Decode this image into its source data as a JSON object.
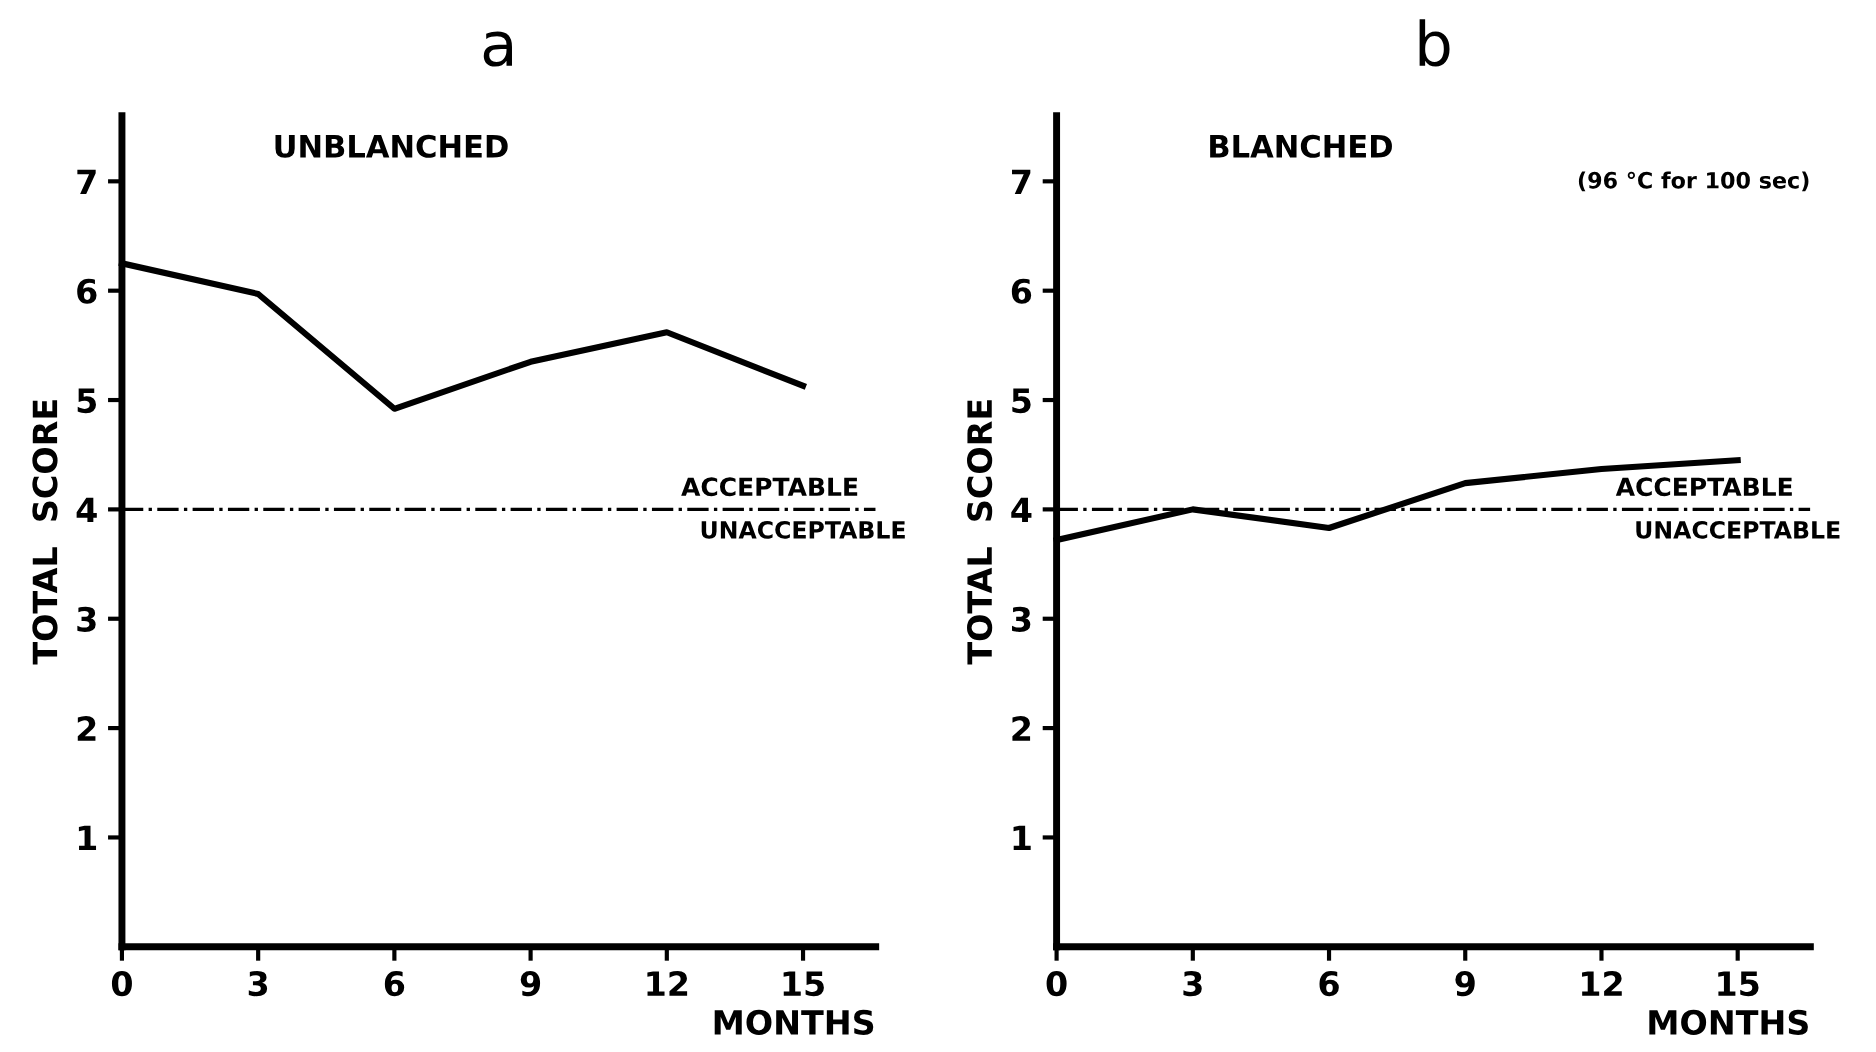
{
  "chart_data": [
    {
      "type": "line",
      "title": "a",
      "subtitle": "UNBLANCHED",
      "xlabel": "MONTHS",
      "ylabel": "TOTAL  SCORE",
      "x": [
        0,
        3,
        6,
        9,
        12,
        15
      ],
      "series": [
        {
          "color": "#000000",
          "values": [
            6.25,
            5.97,
            4.92,
            5.35,
            5.62,
            5.13
          ]
        }
      ],
      "xlim": [
        0,
        16.6
      ],
      "ylim": [
        0,
        7.6
      ],
      "xticks": [
        0,
        3,
        6,
        9,
        12,
        15
      ],
      "yticks": [
        1,
        2,
        3,
        4,
        5,
        6,
        7
      ],
      "ref_lines": [
        {
          "axis": "y",
          "value": 4,
          "label": "ACCEPTABLE",
          "color": "#000000",
          "line_style": "dashdot"
        }
      ],
      "annotations": [
        {
          "text": "UNACCEPTABLE",
          "x": 15,
          "y": 4
        }
      ],
      "grid": false,
      "marker": "none",
      "line_style": "solid"
    },
    {
      "type": "line",
      "title": "b",
      "subtitle": "BLANCHED",
      "xlabel": "MONTHS",
      "ylabel": "TOTAL  SCORE",
      "x": [
        0,
        3,
        6,
        9,
        12,
        15
      ],
      "series": [
        {
          "color": "#000000",
          "values": [
            3.72,
            4.0,
            3.83,
            4.24,
            4.37,
            4.45
          ]
        }
      ],
      "xlim": [
        0,
        16.6
      ],
      "ylim": [
        0,
        7.6
      ],
      "xticks": [
        0,
        3,
        6,
        9,
        12,
        15
      ],
      "yticks": [
        1,
        2,
        3,
        4,
        5,
        6,
        7
      ],
      "ref_lines": [
        {
          "axis": "y",
          "value": 4,
          "label": "ACCEPTABLE",
          "color": "#000000",
          "line_style": "dashdot"
        }
      ],
      "annotations": [
        {
          "text": "UNACCEPTABLE",
          "x": 15,
          "y": 4
        },
        "(96 °C for 100 sec)"
      ],
      "grid": false,
      "marker": "none",
      "line_style": "solid"
    }
  ]
}
